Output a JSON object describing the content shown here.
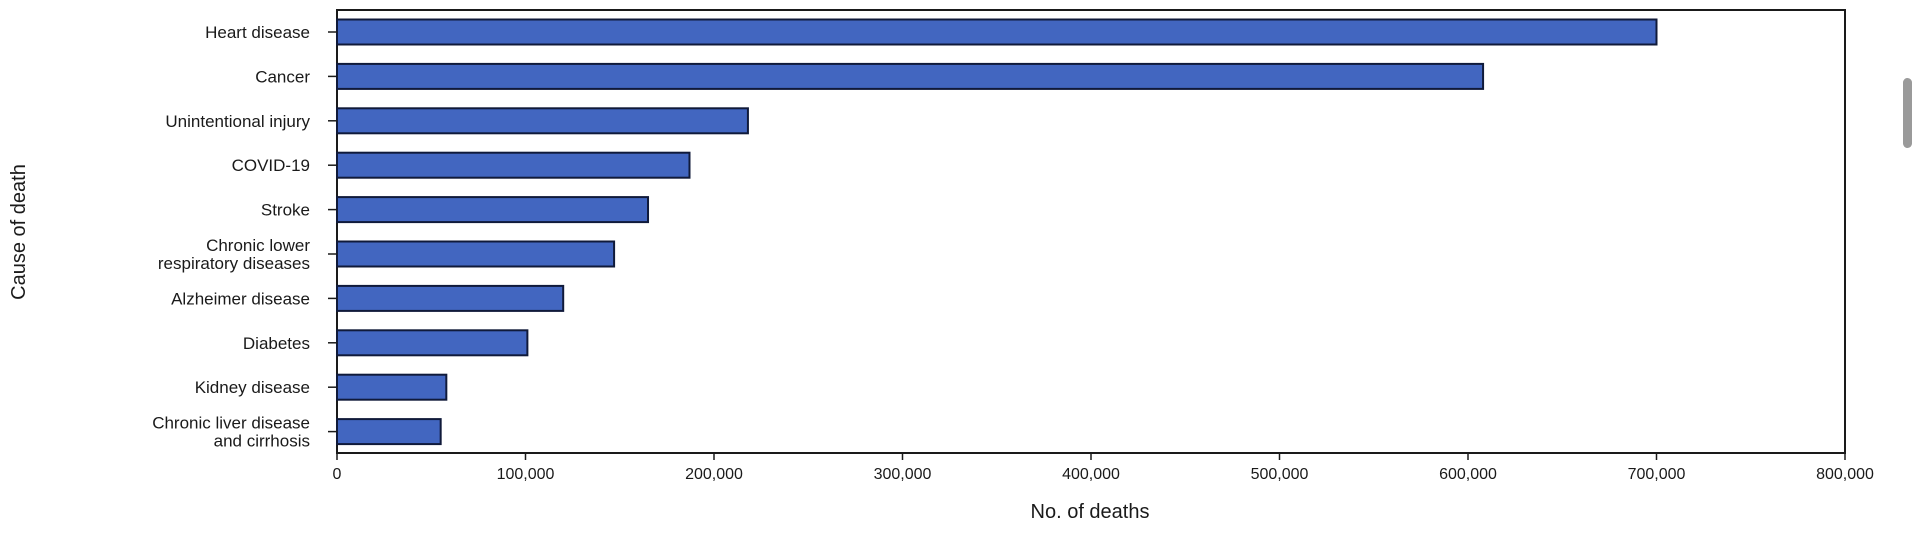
{
  "chart_data": {
    "type": "bar",
    "orientation": "horizontal",
    "categories": [
      [
        "Heart disease"
      ],
      [
        "Cancer"
      ],
      [
        "Unintentional injury"
      ],
      [
        "COVID-19"
      ],
      [
        "Stroke"
      ],
      [
        "Chronic lower",
        "respiratory diseases"
      ],
      [
        "Alzheimer disease"
      ],
      [
        "Diabetes"
      ],
      [
        "Kidney disease"
      ],
      [
        "Chronic liver disease",
        "and cirrhosis"
      ]
    ],
    "values": [
      700000,
      608000,
      218000,
      187000,
      165000,
      147000,
      120000,
      101000,
      58000,
      55000
    ],
    "xlabel": "No. of deaths",
    "ylabel": "Cause of death",
    "xlim": [
      0,
      800000
    ],
    "xticks": [
      0,
      100000,
      200000,
      300000,
      400000,
      500000,
      600000,
      700000,
      800000
    ],
    "xtick_labels": [
      "0",
      "100,000",
      "200,000",
      "300,000",
      "400,000",
      "500,000",
      "600,000",
      "700,000",
      "800,000"
    ],
    "grid": false,
    "bar_color": "#4266c0"
  }
}
